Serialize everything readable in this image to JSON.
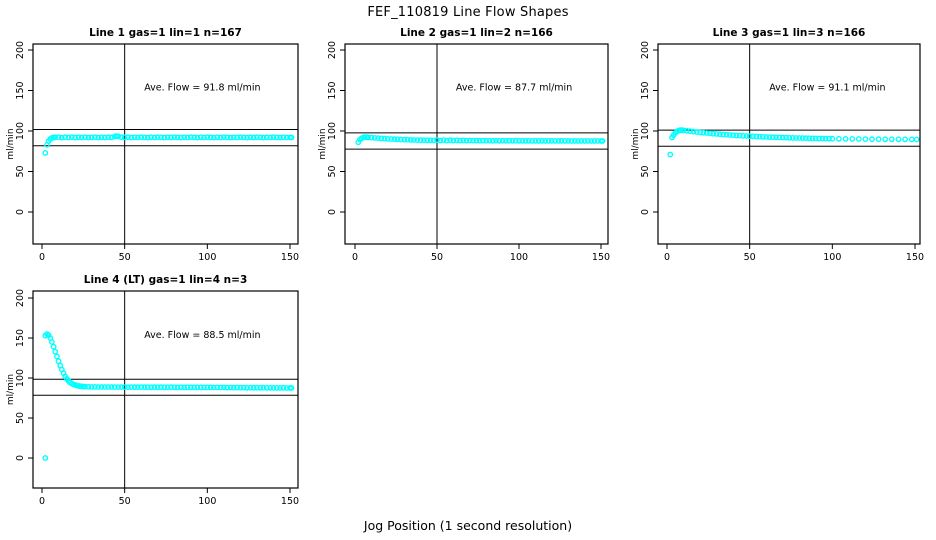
{
  "title": "FEF_110819  Line Flow Shapes",
  "xlabel": "Jog Position (1 second resolution)",
  "accent_color": "#00FFFF",
  "frame_color": "#000000",
  "chart_data": [
    {
      "type": "scatter",
      "title": "Line 1 gas=1 lin=1 n=167",
      "annotation": "Ave. Flow =  91.8  ml/min",
      "ave_flow": 91.8,
      "n": 167,
      "ylabel": "ml/min",
      "x_ticks": [
        0,
        50,
        100,
        150
      ],
      "y_ticks": [
        0,
        50,
        100,
        150,
        200
      ],
      "ylim": [
        0,
        200
      ],
      "xlim": [
        0,
        150
      ],
      "vline_x": 50,
      "hlines": [
        101.8,
        81.8
      ],
      "annotation_pos": [
        97,
        150
      ],
      "points": [
        [
          2,
          73
        ],
        [
          3,
          83
        ],
        [
          4,
          87.5
        ],
        [
          5,
          90
        ],
        [
          6,
          91.5
        ],
        [
          7,
          92
        ],
        [
          8,
          92.2
        ],
        [
          10,
          92.4
        ],
        [
          12,
          91.9
        ],
        [
          14,
          92.3
        ],
        [
          16,
          92.0
        ],
        [
          18,
          92.4
        ],
        [
          20,
          91.9
        ],
        [
          22,
          92.2
        ],
        [
          24,
          92.0
        ],
        [
          26,
          92.3
        ],
        [
          28,
          91.9
        ],
        [
          30,
          92.1
        ],
        [
          32,
          92.3
        ],
        [
          34,
          91.9
        ],
        [
          36,
          92.2
        ],
        [
          38,
          92.0
        ],
        [
          40,
          92.3
        ],
        [
          42,
          92.1
        ],
        [
          44,
          93.2
        ],
        [
          45,
          93.6
        ],
        [
          46,
          93.3
        ],
        [
          48,
          92.4
        ],
        [
          50,
          92.1
        ],
        [
          52,
          92.3
        ],
        [
          54,
          91.9
        ],
        [
          56,
          92.2
        ],
        [
          58,
          92.0
        ],
        [
          60,
          92.3
        ],
        [
          62,
          92.1
        ],
        [
          64,
          91.9
        ],
        [
          66,
          92.2
        ],
        [
          68,
          92.0
        ],
        [
          70,
          92.3
        ],
        [
          72,
          92.1
        ],
        [
          74,
          91.9
        ],
        [
          76,
          92.2
        ],
        [
          78,
          92.0
        ],
        [
          80,
          92.3
        ],
        [
          82,
          92.1
        ],
        [
          84,
          91.9
        ],
        [
          86,
          92.2
        ],
        [
          88,
          92.0
        ],
        [
          90,
          92.3
        ],
        [
          92,
          92.1
        ],
        [
          94,
          91.9
        ],
        [
          96,
          92.2
        ],
        [
          98,
          92.0
        ],
        [
          100,
          92.3
        ],
        [
          102,
          92.1
        ],
        [
          104,
          91.9
        ],
        [
          106,
          92.2
        ],
        [
          108,
          92.0
        ],
        [
          110,
          92.3
        ],
        [
          112,
          92.1
        ],
        [
          114,
          91.9
        ],
        [
          116,
          92.2
        ],
        [
          118,
          92.0
        ],
        [
          120,
          92.3
        ],
        [
          122,
          92.1
        ],
        [
          124,
          91.9
        ],
        [
          126,
          92.2
        ],
        [
          128,
          92.0
        ],
        [
          130,
          92.3
        ],
        [
          132,
          92.1
        ],
        [
          134,
          91.9
        ],
        [
          136,
          92.2
        ],
        [
          138,
          92.0
        ],
        [
          140,
          92.3
        ],
        [
          142,
          92.1
        ],
        [
          144,
          91.9
        ],
        [
          146,
          92.2
        ],
        [
          148,
          92.0
        ],
        [
          150,
          92.1
        ],
        [
          151,
          92.0
        ]
      ]
    },
    {
      "type": "scatter",
      "title": "Line 2 gas=1 lin=2 n=166",
      "annotation": "Ave. Flow =  87.7  ml/min",
      "ave_flow": 87.7,
      "n": 166,
      "ylabel": "ml/min",
      "x_ticks": [
        0,
        50,
        100,
        150
      ],
      "y_ticks": [
        0,
        50,
        100,
        150,
        200
      ],
      "ylim": [
        0,
        200
      ],
      "xlim": [
        0,
        150
      ],
      "vline_x": 50,
      "hlines": [
        97.7,
        77.7
      ],
      "annotation_pos": [
        97,
        150
      ],
      "points": [
        [
          2,
          86
        ],
        [
          3,
          89.5
        ],
        [
          4,
          91
        ],
        [
          5,
          92
        ],
        [
          6,
          92.4
        ],
        [
          7,
          92.3
        ],
        [
          8,
          92.1
        ],
        [
          10,
          91.8
        ],
        [
          12,
          91.5
        ],
        [
          14,
          91.2
        ],
        [
          16,
          90.9
        ],
        [
          18,
          90.6
        ],
        [
          20,
          90.3
        ],
        [
          22,
          90.1
        ],
        [
          24,
          89.9
        ],
        [
          26,
          89.7
        ],
        [
          28,
          89.5
        ],
        [
          30,
          89.3
        ],
        [
          32,
          89.2
        ],
        [
          34,
          89.0
        ],
        [
          36,
          88.9
        ],
        [
          38,
          88.8
        ],
        [
          40,
          88.7
        ],
        [
          42,
          88.6
        ],
        [
          44,
          88.5
        ],
        [
          46,
          88.5
        ],
        [
          48,
          88.4
        ],
        [
          50,
          88.9
        ],
        [
          52,
          88.3
        ],
        [
          54,
          88.8
        ],
        [
          56,
          88.2
        ],
        [
          58,
          88.7
        ],
        [
          60,
          88.2
        ],
        [
          62,
          88.5
        ],
        [
          64,
          88.2
        ],
        [
          66,
          88.4
        ],
        [
          68,
          88.1
        ],
        [
          70,
          88.3
        ],
        [
          72,
          88.1
        ],
        [
          74,
          88.2
        ],
        [
          76,
          88.0
        ],
        [
          78,
          88.2
        ],
        [
          80,
          88.0
        ],
        [
          82,
          88.1
        ],
        [
          84,
          87.9
        ],
        [
          86,
          88.1
        ],
        [
          88,
          87.9
        ],
        [
          90,
          88.0
        ],
        [
          92,
          87.9
        ],
        [
          94,
          88.0
        ],
        [
          96,
          87.9
        ],
        [
          98,
          88.0
        ],
        [
          100,
          87.9
        ],
        [
          102,
          87.9
        ],
        [
          104,
          87.8
        ],
        [
          106,
          87.9
        ],
        [
          108,
          87.8
        ],
        [
          110,
          87.9
        ],
        [
          112,
          87.8
        ],
        [
          114,
          87.9
        ],
        [
          116,
          87.8
        ],
        [
          118,
          87.8
        ],
        [
          120,
          87.9
        ],
        [
          122,
          87.8
        ],
        [
          124,
          87.8
        ],
        [
          126,
          87.9
        ],
        [
          128,
          87.8
        ],
        [
          130,
          87.8
        ],
        [
          132,
          87.7
        ],
        [
          134,
          87.8
        ],
        [
          136,
          87.7
        ],
        [
          138,
          87.8
        ],
        [
          140,
          87.7
        ],
        [
          142,
          87.8
        ],
        [
          144,
          87.7
        ],
        [
          146,
          87.7
        ],
        [
          148,
          87.8
        ],
        [
          150,
          87.7
        ],
        [
          151,
          87.7
        ]
      ]
    },
    {
      "type": "scatter",
      "title": "Line 3 gas=1 lin=3 n=166",
      "annotation": "Ave. Flow =  91.1  ml/min",
      "ave_flow": 91.1,
      "n": 166,
      "ylabel": "ml/min",
      "x_ticks": [
        0,
        50,
        100,
        150
      ],
      "y_ticks": [
        0,
        50,
        100,
        150,
        200
      ],
      "ylim": [
        0,
        200
      ],
      "xlim": [
        0,
        150
      ],
      "vline_x": 50,
      "hlines": [
        101.1,
        81.1
      ],
      "annotation_pos": [
        97,
        150
      ],
      "points": [
        [
          2,
          71
        ],
        [
          3,
          92
        ],
        [
          4,
          95
        ],
        [
          5,
          97.5
        ],
        [
          6,
          99.5
        ],
        [
          7,
          100.5
        ],
        [
          8,
          101
        ],
        [
          9,
          101
        ],
        [
          10,
          100.7
        ],
        [
          12,
          100.2
        ],
        [
          14,
          99.7
        ],
        [
          16,
          99.2
        ],
        [
          18,
          98.8
        ],
        [
          20,
          98.3
        ],
        [
          22,
          97.9
        ],
        [
          24,
          97.5
        ],
        [
          26,
          97.1
        ],
        [
          28,
          96.7
        ],
        [
          30,
          96.4
        ],
        [
          32,
          96.0
        ],
        [
          34,
          95.7
        ],
        [
          36,
          95.4
        ],
        [
          38,
          95.1
        ],
        [
          40,
          94.8
        ],
        [
          42,
          94.5
        ],
        [
          44,
          94.3
        ],
        [
          46,
          94.0
        ],
        [
          48,
          93.8
        ],
        [
          50,
          93.6
        ],
        [
          52,
          93.4
        ],
        [
          54,
          93.2
        ],
        [
          56,
          93.0
        ],
        [
          58,
          92.8
        ],
        [
          60,
          92.6
        ],
        [
          62,
          92.5
        ],
        [
          64,
          92.3
        ],
        [
          66,
          92.2
        ],
        [
          68,
          92.0
        ],
        [
          70,
          91.9
        ],
        [
          72,
          91.8
        ],
        [
          74,
          91.6
        ],
        [
          76,
          91.5
        ],
        [
          78,
          91.4
        ],
        [
          80,
          91.3
        ],
        [
          82,
          91.2
        ],
        [
          84,
          91.1
        ],
        [
          86,
          91.0
        ],
        [
          88,
          90.9
        ],
        [
          90,
          90.9
        ],
        [
          92,
          90.8
        ],
        [
          94,
          90.7
        ],
        [
          96,
          90.6
        ],
        [
          98,
          90.6
        ],
        [
          100,
          90.5
        ],
        [
          104,
          90.4
        ],
        [
          108,
          90.3
        ],
        [
          112,
          90.2
        ],
        [
          116,
          90.1
        ],
        [
          120,
          90.0
        ],
        [
          124,
          89.9
        ],
        [
          128,
          89.9
        ],
        [
          132,
          89.8
        ],
        [
          136,
          89.7
        ],
        [
          140,
          89.7
        ],
        [
          144,
          89.6
        ],
        [
          148,
          89.6
        ],
        [
          151,
          89.5
        ]
      ]
    },
    {
      "type": "scatter",
      "title": "Line 4 (LT) gas=1 lin=4 n=3",
      "annotation": "Ave. Flow =  88.5  ml/min",
      "ave_flow": 88.5,
      "n": 3,
      "ylabel": "ml/min",
      "x_ticks": [
        0,
        50,
        100,
        150
      ],
      "y_ticks": [
        0,
        50,
        100,
        150,
        200
      ],
      "ylim": [
        0,
        200
      ],
      "xlim": [
        0,
        150
      ],
      "vline_x": 50,
      "hlines": [
        98.5,
        78.5
      ],
      "annotation_pos": [
        97,
        150
      ],
      "points": [
        [
          2,
          0
        ],
        [
          2,
          153
        ],
        [
          3,
          155
        ],
        [
          4,
          153.5
        ],
        [
          5,
          150
        ],
        [
          6,
          145
        ],
        [
          7,
          139
        ],
        [
          8,
          133
        ],
        [
          9,
          127
        ],
        [
          10,
          121
        ],
        [
          11,
          115.5
        ],
        [
          12,
          110.5
        ],
        [
          13,
          106
        ],
        [
          14,
          102
        ],
        [
          15,
          99
        ],
        [
          16,
          96.5
        ],
        [
          17,
          94.5
        ],
        [
          18,
          93
        ],
        [
          19,
          92
        ],
        [
          20,
          91.2
        ],
        [
          21,
          90.6
        ],
        [
          22,
          90.1
        ],
        [
          23,
          89.8
        ],
        [
          24,
          89.5
        ],
        [
          25,
          89.3
        ],
        [
          26,
          89.1
        ],
        [
          28,
          89.0
        ],
        [
          30,
          88.9
        ],
        [
          32,
          88.9
        ],
        [
          34,
          88.8
        ],
        [
          36,
          88.8
        ],
        [
          38,
          88.7
        ],
        [
          40,
          88.7
        ],
        [
          42,
          88.7
        ],
        [
          44,
          88.6
        ],
        [
          46,
          88.6
        ],
        [
          48,
          88.6
        ],
        [
          50,
          88.6
        ],
        [
          52,
          88.5
        ],
        [
          54,
          88.6
        ],
        [
          56,
          88.5
        ],
        [
          58,
          88.5
        ],
        [
          60,
          88.6
        ],
        [
          62,
          88.5
        ],
        [
          64,
          88.5
        ],
        [
          66,
          88.4
        ],
        [
          68,
          88.5
        ],
        [
          70,
          88.4
        ],
        [
          72,
          88.5
        ],
        [
          74,
          88.4
        ],
        [
          76,
          88.4
        ],
        [
          78,
          88.5
        ],
        [
          80,
          88.4
        ],
        [
          82,
          88.3
        ],
        [
          84,
          88.4
        ],
        [
          86,
          88.3
        ],
        [
          88,
          88.4
        ],
        [
          90,
          88.3
        ],
        [
          92,
          88.3
        ],
        [
          94,
          88.2
        ],
        [
          96,
          88.3
        ],
        [
          98,
          88.2
        ],
        [
          100,
          88.3
        ],
        [
          102,
          88.2
        ],
        [
          104,
          88.1
        ],
        [
          106,
          88.2
        ],
        [
          108,
          88.1
        ],
        [
          110,
          88.2
        ],
        [
          112,
          88.0
        ],
        [
          114,
          88.1
        ],
        [
          116,
          87.9
        ],
        [
          118,
          88.1
        ],
        [
          120,
          87.9
        ],
        [
          122,
          88.0
        ],
        [
          124,
          87.8
        ],
        [
          126,
          88.0
        ],
        [
          128,
          87.8
        ],
        [
          130,
          87.9
        ],
        [
          132,
          87.7
        ],
        [
          134,
          87.9
        ],
        [
          136,
          87.7
        ],
        [
          138,
          87.8
        ],
        [
          140,
          87.6
        ],
        [
          142,
          87.8
        ],
        [
          144,
          87.6
        ],
        [
          146,
          87.7
        ],
        [
          148,
          87.5
        ],
        [
          150,
          87.6
        ],
        [
          151,
          87.5
        ]
      ]
    }
  ]
}
